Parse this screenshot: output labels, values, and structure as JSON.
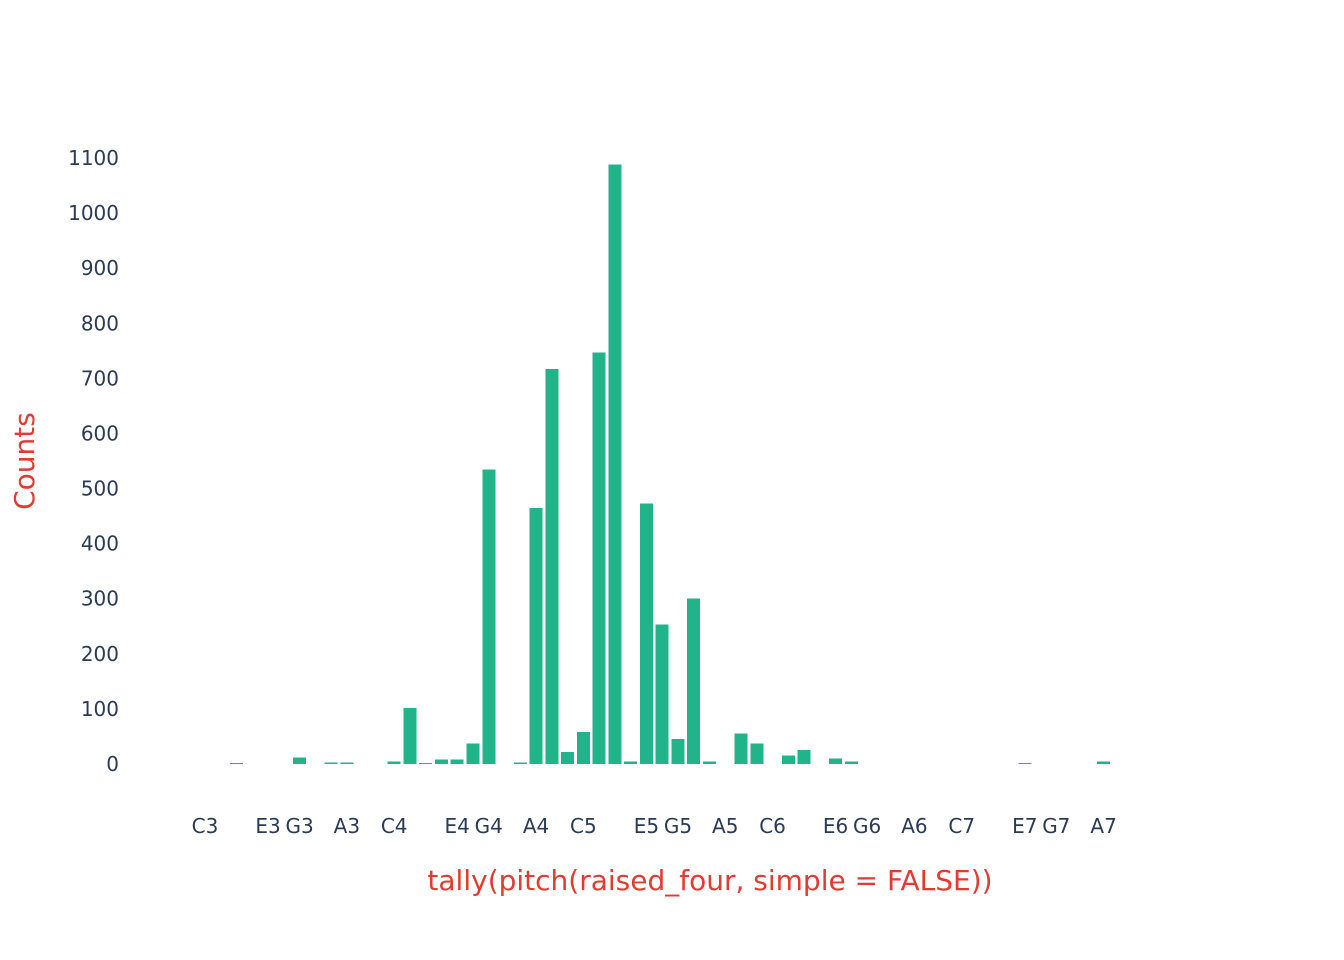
{
  "chart_data": {
    "type": "bar",
    "xlabel": "tally(pitch(raised_four, simple = FALSE))",
    "ylabel": "Counts",
    "ylim": [
      0,
      1100
    ],
    "yticks": [
      0,
      100,
      200,
      300,
      400,
      500,
      600,
      700,
      800,
      900,
      1000,
      1100
    ],
    "x_tick_labels": [
      "C3",
      "E3",
      "G3",
      "A3",
      "C4",
      "E4",
      "G4",
      "A4",
      "C5",
      "E5",
      "G5",
      "A5",
      "C6",
      "E6",
      "G6",
      "A6",
      "C7",
      "E7",
      "G7",
      "A7"
    ],
    "categories": [
      "C3",
      "",
      "",
      "",
      "E3",
      "",
      "G3",
      "",
      "",
      "A3",
      "",
      "",
      "C4",
      "",
      "",
      "",
      "E4",
      "",
      "G4",
      "",
      "",
      "A4",
      "",
      "",
      "C5",
      "",
      "",
      "",
      "E5",
      "",
      "G5",
      "",
      "",
      "A5",
      "",
      "",
      "C6",
      "",
      "",
      "",
      "E6",
      "",
      "G6",
      "",
      "",
      "A6",
      "",
      "",
      "C7",
      "",
      "",
      "",
      "E7",
      "",
      "G7",
      "",
      "",
      "A7"
    ],
    "values": [
      0,
      0,
      2,
      0,
      0,
      0,
      12,
      0,
      3,
      3,
      0,
      0,
      5,
      102,
      2,
      8,
      8,
      37,
      535,
      0,
      3,
      465,
      717,
      22,
      58,
      747,
      1088,
      5,
      473,
      253,
      45,
      300,
      5,
      0,
      55,
      37,
      0,
      15,
      25,
      0,
      10,
      5,
      0,
      0,
      0,
      0,
      0,
      0,
      0,
      0,
      0,
      0,
      2,
      0,
      0,
      0,
      0,
      5
    ],
    "bar_color": "#21b38a",
    "label_color": "#e03c31",
    "tick_color": "#2b3a55",
    "grid": false
  }
}
